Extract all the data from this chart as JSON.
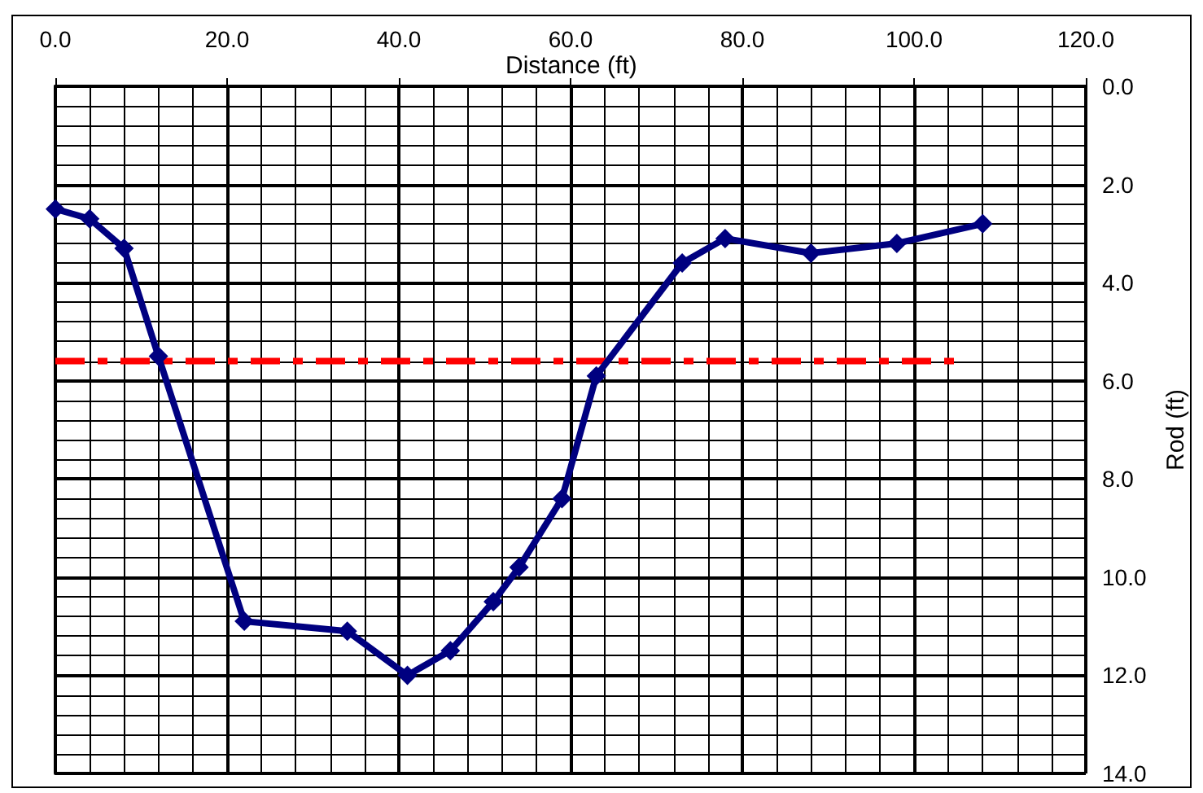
{
  "chart_data": {
    "type": "line",
    "xlabel": "Distance (ft)",
    "ylabel": "Rod (ft)",
    "xlim": [
      0,
      120
    ],
    "xticks": [
      {
        "value": 0,
        "label": "0.0"
      },
      {
        "value": 20,
        "label": "20.0"
      },
      {
        "value": 40,
        "label": "40.0"
      },
      {
        "value": 60,
        "label": "60.0"
      },
      {
        "value": 80,
        "label": "80.0"
      },
      {
        "value": 100,
        "label": "100.0"
      },
      {
        "value": 120,
        "label": "120.0"
      }
    ],
    "ylim": [
      14,
      0
    ],
    "yticks": [
      {
        "value": 0,
        "label": "0.0"
      },
      {
        "value": 2,
        "label": "2.0"
      },
      {
        "value": 4,
        "label": "4.0"
      },
      {
        "value": 6,
        "label": "6.0"
      },
      {
        "value": 8,
        "label": "8.0"
      },
      {
        "value": 10,
        "label": "10.0"
      },
      {
        "value": 12,
        "label": "12.0"
      },
      {
        "value": 14,
        "label": "14.0"
      }
    ],
    "grid": true,
    "series": [
      {
        "color": "#000080",
        "marker": "diamond",
        "line_style": "solid",
        "x": [
          0,
          4,
          8,
          12,
          22,
          34,
          41,
          46,
          51,
          54,
          59,
          63,
          73,
          78,
          88,
          98,
          108
        ],
        "values": [
          2.5,
          2.7,
          3.3,
          5.5,
          10.9,
          11.1,
          12.0,
          11.5,
          10.5,
          9.8,
          8.4,
          5.9,
          3.6,
          3.1,
          3.4,
          3.2,
          2.8
        ]
      },
      {
        "color": "#ff0000",
        "marker": "none",
        "line_style": "dashed",
        "x": [
          0,
          105
        ],
        "values": [
          5.6,
          5.6
        ]
      }
    ]
  }
}
